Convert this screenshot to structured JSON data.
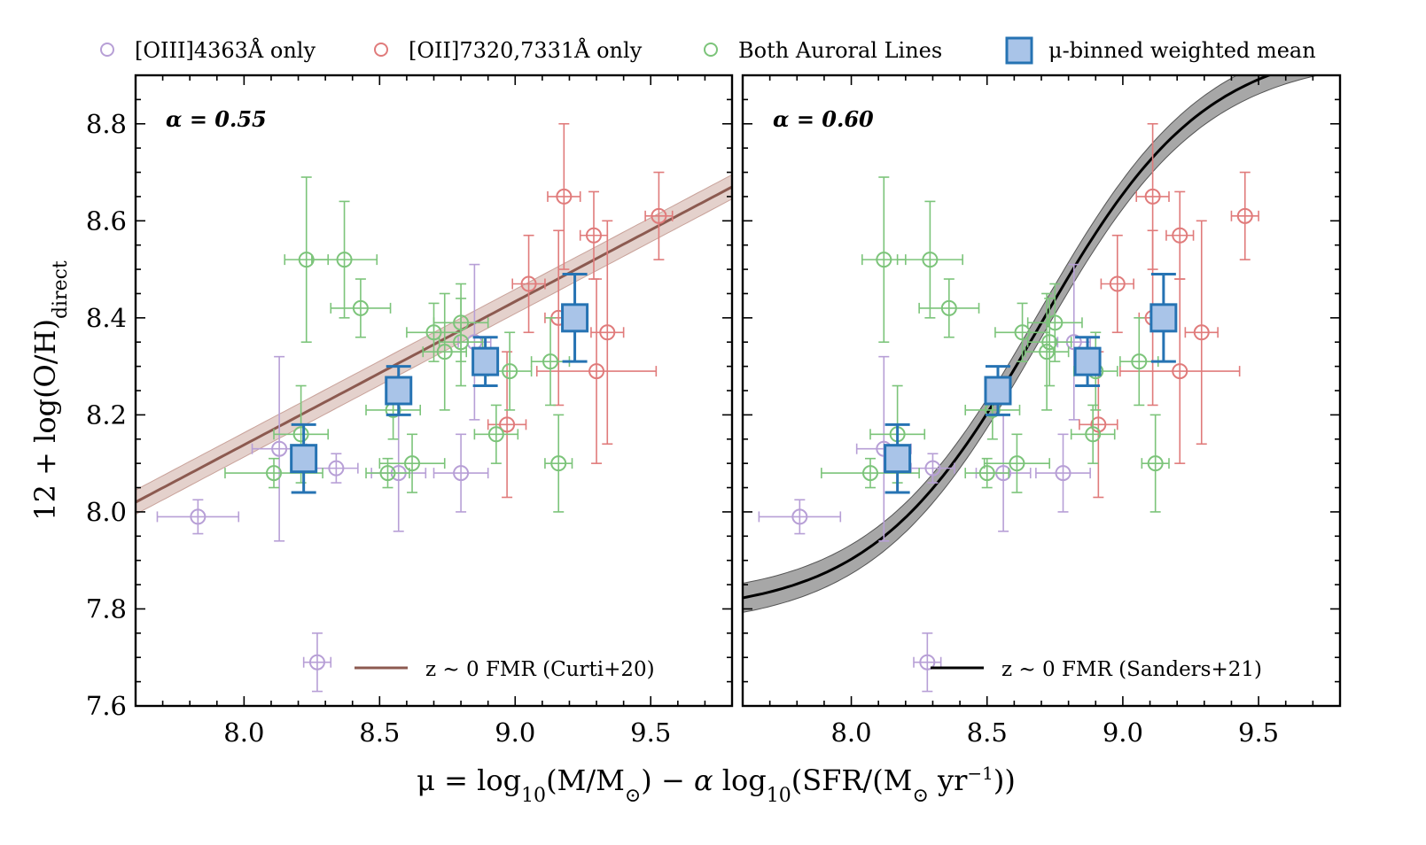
{
  "chart_data": {
    "type": "scatter",
    "xlabel_parts": {
      "pre": "μ = log",
      "sub1": "10",
      "mid1": "(M/M",
      "sun1": "⊙",
      "mid2": ") − ",
      "alpha": "α",
      "mid3": " log",
      "sub2": "10",
      "mid4": "(SFR/(M",
      "sun2": "⊙",
      "mid5": " yr",
      "sup": "−1",
      "post": "))"
    },
    "ylabel_parts": {
      "main": "12 + log(O/H)",
      "sub": "direct"
    },
    "xlim": [
      7.6,
      9.8
    ],
    "ylim": [
      7.6,
      8.9
    ],
    "xticks": [
      8.0,
      8.5,
      9.0,
      9.5
    ],
    "xtick_labels": [
      "8.0",
      "8.5",
      "9.0",
      "9.5"
    ],
    "yticks": [
      7.6,
      7.8,
      8.0,
      8.2,
      8.4,
      8.6,
      8.8
    ],
    "ytick_labels": [
      "7.6",
      "7.8",
      "8.0",
      "8.2",
      "8.4",
      "8.6",
      "8.8"
    ],
    "colors": {
      "oiii": "#b79fd6",
      "oii": "#e07b7b",
      "both": "#7cc47a",
      "binned_fill": "#a9c4e8",
      "binned_edge": "#2673b3",
      "curti": "#8c5a50",
      "curti_band": "#d9bdb7",
      "sanders": "#000000",
      "sanders_band": "#8a8a8a"
    },
    "legend_top": [
      {
        "key": "oiii",
        "label": "[OIII]4363Å only"
      },
      {
        "key": "oii",
        "label": "[OII]7320,7331Å only"
      },
      {
        "key": "both",
        "label": "Both Auroral Lines"
      },
      {
        "key": "binned",
        "label": "μ-binned weighted mean"
      }
    ],
    "panels": [
      {
        "alpha_label": "α = 0.55",
        "fit_label": "z ∼ 0 FMR (Curti+20)",
        "fit": {
          "type": "linear",
          "x0": 7.6,
          "y0": 8.02,
          "x1": 9.8,
          "y1": 8.67,
          "band": 0.025
        },
        "series": [
          {
            "key": "oiii",
            "points": [
              [
                7.83,
                7.99,
                0.15,
                0.035
              ],
              [
                8.13,
                8.13,
                0.1,
                0.19
              ],
              [
                8.27,
                7.69,
                0.05,
                0.06
              ],
              [
                8.34,
                8.09,
                0.08,
                0.03
              ],
              [
                8.57,
                8.08,
                0.1,
                0.12
              ],
              [
                8.8,
                8.08,
                0.1,
                0.08
              ],
              [
                8.85,
                8.35,
                0.06,
                0.16
              ]
            ]
          },
          {
            "key": "oii",
            "points": [
              [
                8.97,
                8.18,
                0.07,
                0.15
              ],
              [
                9.05,
                8.47,
                0.06,
                0.1
              ],
              [
                9.16,
                8.4,
                0.05,
                0.18
              ],
              [
                9.18,
                8.65,
                0.06,
                0.15
              ],
              [
                9.29,
                8.57,
                0.05,
                0.09
              ],
              [
                9.3,
                8.29,
                0.22,
                0.19
              ],
              [
                9.34,
                8.37,
                0.06,
                0.23
              ],
              [
                9.53,
                8.61,
                0.05,
                0.09
              ]
            ]
          },
          {
            "key": "both",
            "points": [
              [
                8.11,
                8.08,
                0.18,
                0.03
              ],
              [
                8.21,
                8.16,
                0.1,
                0.1
              ],
              [
                8.23,
                8.52,
                0.08,
                0.17
              ],
              [
                8.37,
                8.52,
                0.12,
                0.12
              ],
              [
                8.43,
                8.42,
                0.11,
                0.06
              ],
              [
                8.53,
                8.08,
                0.08,
                0.03
              ],
              [
                8.55,
                8.21,
                0.1,
                0.06
              ],
              [
                8.62,
                8.1,
                0.12,
                0.06
              ],
              [
                8.7,
                8.37,
                0.1,
                0.06
              ],
              [
                8.74,
                8.33,
                0.08,
                0.12
              ],
              [
                8.8,
                8.35,
                0.08,
                0.09
              ],
              [
                8.8,
                8.39,
                0.1,
                0.08
              ],
              [
                8.93,
                8.16,
                0.08,
                0.06
              ],
              [
                8.98,
                8.29,
                0.08,
                0.08
              ],
              [
                9.13,
                8.31,
                0.07,
                0.09
              ],
              [
                9.16,
                8.1,
                0.05,
                0.1
              ]
            ]
          },
          {
            "key": "binned",
            "points": [
              [
                8.22,
                8.11,
                0,
                0.07
              ],
              [
                8.57,
                8.25,
                0,
                0.05
              ],
              [
                8.89,
                8.31,
                0,
                0.05
              ],
              [
                9.22,
                8.4,
                0,
                0.09
              ]
            ]
          }
        ]
      },
      {
        "alpha_label": "α = 0.60",
        "fit_label": "z ∼ 0 FMR (Sanders+21)",
        "fit": {
          "type": "sigmoid",
          "min": 7.79,
          "max": 8.97,
          "center": 8.69,
          "slope": 1.63,
          "band": 0.03
        },
        "series": [
          {
            "key": "oiii",
            "points": [
              [
                7.81,
                7.99,
                0.15,
                0.035
              ],
              [
                8.12,
                8.13,
                0.1,
                0.19
              ],
              [
                8.28,
                7.69,
                0.05,
                0.06
              ],
              [
                8.3,
                8.09,
                0.08,
                0.03
              ],
              [
                8.56,
                8.08,
                0.1,
                0.12
              ],
              [
                8.78,
                8.08,
                0.1,
                0.08
              ],
              [
                8.82,
                8.35,
                0.06,
                0.16
              ]
            ]
          },
          {
            "key": "oii",
            "points": [
              [
                8.91,
                8.18,
                0.07,
                0.15
              ],
              [
                8.98,
                8.47,
                0.06,
                0.1
              ],
              [
                9.11,
                8.4,
                0.05,
                0.18
              ],
              [
                9.11,
                8.65,
                0.06,
                0.15
              ],
              [
                9.21,
                8.57,
                0.05,
                0.09
              ],
              [
                9.21,
                8.29,
                0.22,
                0.19
              ],
              [
                9.29,
                8.37,
                0.06,
                0.23
              ],
              [
                9.45,
                8.61,
                0.05,
                0.09
              ]
            ]
          },
          {
            "key": "both",
            "points": [
              [
                8.07,
                8.08,
                0.18,
                0.03
              ],
              [
                8.17,
                8.16,
                0.1,
                0.1
              ],
              [
                8.12,
                8.52,
                0.08,
                0.17
              ],
              [
                8.29,
                8.52,
                0.12,
                0.12
              ],
              [
                8.36,
                8.42,
                0.11,
                0.06
              ],
              [
                8.5,
                8.08,
                0.08,
                0.03
              ],
              [
                8.52,
                8.21,
                0.1,
                0.06
              ],
              [
                8.61,
                8.1,
                0.12,
                0.06
              ],
              [
                8.63,
                8.37,
                0.1,
                0.06
              ],
              [
                8.72,
                8.33,
                0.08,
                0.12
              ],
              [
                8.73,
                8.35,
                0.08,
                0.09
              ],
              [
                8.75,
                8.39,
                0.1,
                0.08
              ],
              [
                8.89,
                8.16,
                0.08,
                0.06
              ],
              [
                8.9,
                8.29,
                0.08,
                0.08
              ],
              [
                9.06,
                8.31,
                0.07,
                0.09
              ],
              [
                9.12,
                8.1,
                0.05,
                0.1
              ]
            ]
          },
          {
            "key": "binned",
            "points": [
              [
                8.17,
                8.11,
                0,
                0.07
              ],
              [
                8.54,
                8.25,
                0,
                0.05
              ],
              [
                8.87,
                8.31,
                0,
                0.05
              ],
              [
                9.15,
                8.4,
                0,
                0.09
              ]
            ]
          }
        ]
      }
    ]
  }
}
